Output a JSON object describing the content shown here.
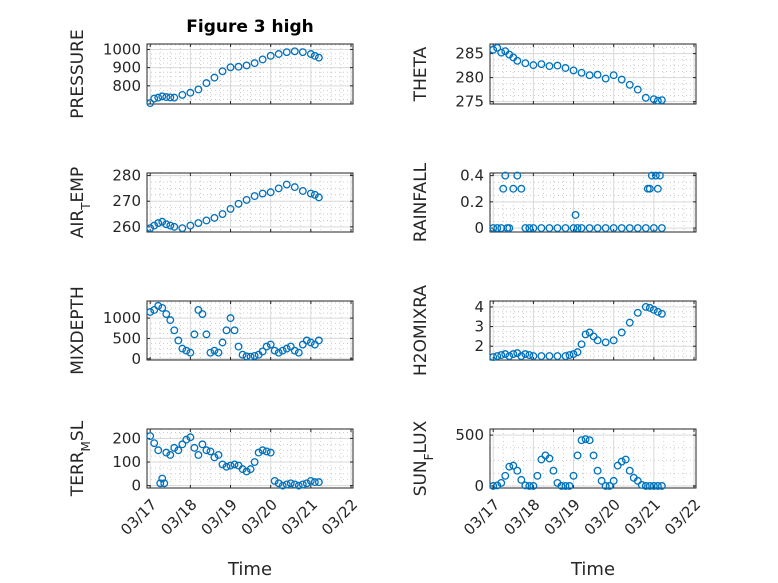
{
  "figure": {
    "title": "Figure 3 high",
    "marker_color": "#0072BD"
  },
  "chart_data": [
    {
      "type": "scatter",
      "id": "pressure",
      "title": "Figure 3 high",
      "xlabel": "",
      "ylabel": "PRESSURE",
      "ylim": [
        700,
        1030
      ],
      "yticks": [
        800,
        900,
        1000
      ],
      "x": [
        0,
        0.1,
        0.2,
        0.3,
        0.4,
        0.5,
        0.6,
        0.8,
        1.0,
        1.2,
        1.4,
        1.6,
        1.8,
        2.0,
        2.2,
        2.4,
        2.6,
        2.8,
        3.0,
        3.2,
        3.4,
        3.6,
        3.8,
        4.0,
        4.1,
        4.2
      ],
      "y": [
        705,
        730,
        735,
        742,
        738,
        736,
        735,
        750,
        762,
        780,
        815,
        845,
        880,
        902,
        905,
        912,
        925,
        945,
        965,
        975,
        985,
        990,
        985,
        975,
        965,
        955
      ]
    },
    {
      "type": "scatter",
      "id": "theta",
      "title": "",
      "xlabel": "",
      "ylabel": "THETA",
      "ylim": [
        274.5,
        287
      ],
      "yticks": [
        275,
        280,
        285
      ],
      "x": [
        0,
        0.1,
        0.2,
        0.3,
        0.4,
        0.5,
        0.6,
        0.8,
        1.0,
        1.2,
        1.4,
        1.6,
        1.8,
        2.0,
        2.2,
        2.4,
        2.6,
        2.8,
        3.0,
        3.2,
        3.4,
        3.6,
        3.8,
        4.0,
        4.1,
        4.2
      ],
      "y": [
        285.8,
        286.2,
        285.2,
        285.5,
        284.8,
        284.2,
        283.5,
        283.0,
        282.6,
        282.8,
        282.4,
        282.5,
        282.0,
        281.5,
        281.0,
        280.5,
        280.6,
        279.8,
        280.5,
        279.6,
        278.5,
        277.5,
        275.8,
        275.5,
        275.2,
        275.3
      ]
    },
    {
      "type": "scatter",
      "id": "air_temp",
      "title": "",
      "xlabel": "",
      "ylabel": "AIR_TEMP",
      "ylim": [
        258,
        281
      ],
      "yticks": [
        260,
        270,
        280
      ],
      "x": [
        0,
        0.1,
        0.2,
        0.3,
        0.4,
        0.5,
        0.6,
        0.8,
        1.0,
        1.2,
        1.4,
        1.6,
        1.8,
        2.0,
        2.2,
        2.4,
        2.6,
        2.8,
        3.0,
        3.2,
        3.4,
        3.6,
        3.8,
        4.0,
        4.1,
        4.2
      ],
      "y": [
        259.5,
        260.5,
        261.5,
        262,
        261,
        260.5,
        260,
        259.5,
        260.5,
        261.5,
        262.5,
        263.5,
        265,
        267,
        269,
        270.5,
        272,
        273,
        273.5,
        275,
        276.5,
        275.5,
        274,
        273,
        272.5,
        271.5
      ]
    },
    {
      "type": "scatter",
      "id": "rainfall",
      "title": "",
      "xlabel": "",
      "ylabel": "RAINFALL",
      "ylim": [
        -0.03,
        0.42
      ],
      "yticks": [
        0,
        0.2,
        0.4
      ],
      "x": [
        0,
        0.1,
        0.2,
        0.25,
        0.3,
        0.35,
        0.4,
        0.5,
        0.6,
        0.7,
        0.8,
        0.9,
        1.0,
        1.2,
        1.4,
        1.6,
        1.8,
        2.0,
        2.05,
        2.1,
        2.2,
        2.4,
        2.6,
        2.8,
        3.0,
        3.2,
        3.4,
        3.6,
        3.8,
        3.85,
        3.9,
        3.95,
        4.0,
        4.05,
        4.1,
        4.15,
        4.2
      ],
      "y": [
        0,
        0,
        0,
        0.3,
        0.4,
        0,
        0,
        0.3,
        0.4,
        0.3,
        0,
        0,
        0,
        0,
        0,
        0,
        0,
        0,
        0.1,
        0,
        0,
        0,
        0,
        0,
        0,
        0,
        0,
        0,
        0,
        0.3,
        0.3,
        0.4,
        0,
        0.4,
        0.3,
        0.4,
        0
      ]
    },
    {
      "type": "scatter",
      "id": "mixdepth",
      "title": "",
      "xlabel": "",
      "ylabel": "MIXDEPTH",
      "ylim": [
        -30,
        1420
      ],
      "yticks": [
        0,
        500,
        1000
      ],
      "x": [
        0,
        0.1,
        0.2,
        0.3,
        0.4,
        0.5,
        0.6,
        0.7,
        0.8,
        0.9,
        1.0,
        1.1,
        1.2,
        1.3,
        1.4,
        1.5,
        1.6,
        1.7,
        1.8,
        1.9,
        2.0,
        2.1,
        2.2,
        2.3,
        2.4,
        2.5,
        2.6,
        2.7,
        2.8,
        2.9,
        3.0,
        3.1,
        3.2,
        3.3,
        3.4,
        3.5,
        3.6,
        3.7,
        3.8,
        3.9,
        4.0,
        4.1,
        4.2
      ],
      "y": [
        1150,
        1200,
        1300,
        1250,
        1100,
        950,
        700,
        450,
        250,
        200,
        150,
        600,
        1200,
        1100,
        600,
        150,
        200,
        150,
        400,
        700,
        1000,
        700,
        300,
        100,
        60,
        50,
        70,
        100,
        180,
        300,
        350,
        200,
        150,
        200,
        250,
        300,
        200,
        150,
        350,
        450,
        400,
        350,
        450
      ]
    },
    {
      "type": "scatter",
      "id": "h2omixra",
      "title": "",
      "xlabel": "",
      "ylabel": "H2OMIXRA",
      "ylim": [
        1.3,
        4.3
      ],
      "yticks": [
        2,
        3,
        4
      ],
      "x": [
        0,
        0.1,
        0.2,
        0.3,
        0.4,
        0.5,
        0.6,
        0.7,
        0.8,
        0.9,
        1.0,
        1.2,
        1.4,
        1.6,
        1.8,
        1.9,
        2.0,
        2.1,
        2.2,
        2.3,
        2.4,
        2.5,
        2.6,
        2.8,
        3.0,
        3.2,
        3.4,
        3.6,
        3.8,
        3.9,
        4.0,
        4.1,
        4.2
      ],
      "y": [
        1.45,
        1.5,
        1.55,
        1.6,
        1.5,
        1.6,
        1.65,
        1.5,
        1.6,
        1.55,
        1.5,
        1.5,
        1.5,
        1.5,
        1.5,
        1.55,
        1.6,
        1.7,
        2.1,
        2.6,
        2.7,
        2.5,
        2.3,
        2.2,
        2.3,
        2.7,
        3.2,
        3.7,
        4.0,
        3.95,
        3.85,
        3.75,
        3.65
      ]
    },
    {
      "type": "scatter",
      "id": "terr_msl",
      "title": "",
      "xlabel": "Time",
      "ylabel": "TERR_MSL",
      "ylim": [
        -10,
        240
      ],
      "yticks": [
        0,
        100,
        200
      ],
      "xticks": [
        "03/17",
        "03/18",
        "03/19",
        "03/20",
        "03/21",
        "03/22"
      ],
      "x": [
        0,
        0.1,
        0.2,
        0.25,
        0.3,
        0.35,
        0.4,
        0.5,
        0.6,
        0.7,
        0.8,
        0.9,
        1.0,
        1.1,
        1.2,
        1.3,
        1.4,
        1.5,
        1.6,
        1.7,
        1.8,
        1.9,
        2.0,
        2.1,
        2.2,
        2.3,
        2.4,
        2.5,
        2.6,
        2.7,
        2.8,
        2.9,
        3.0,
        3.1,
        3.2,
        3.3,
        3.4,
        3.5,
        3.6,
        3.7,
        3.8,
        3.9,
        4.0,
        4.1,
        4.2
      ],
      "y": [
        210,
        180,
        150,
        10,
        30,
        10,
        140,
        130,
        160,
        150,
        175,
        195,
        205,
        160,
        130,
        175,
        150,
        145,
        120,
        130,
        90,
        80,
        85,
        90,
        85,
        70,
        60,
        70,
        100,
        140,
        150,
        145,
        140,
        20,
        10,
        0,
        5,
        10,
        5,
        0,
        5,
        10,
        20,
        15,
        15
      ]
    },
    {
      "type": "scatter",
      "id": "sun_flux",
      "title": "",
      "xlabel": "Time",
      "ylabel": "SUN_FLUX",
      "ylim": [
        -20,
        560
      ],
      "yticks": [
        0,
        500
      ],
      "xticks": [
        "03/17",
        "03/18",
        "03/19",
        "03/20",
        "03/21",
        "03/22"
      ],
      "x": [
        0,
        0.1,
        0.2,
        0.3,
        0.4,
        0.5,
        0.6,
        0.7,
        0.8,
        0.9,
        1.0,
        1.1,
        1.2,
        1.3,
        1.4,
        1.5,
        1.6,
        1.7,
        1.8,
        1.9,
        2.0,
        2.1,
        2.2,
        2.3,
        2.4,
        2.5,
        2.6,
        2.7,
        2.8,
        2.9,
        3.0,
        3.1,
        3.2,
        3.3,
        3.4,
        3.5,
        3.6,
        3.7,
        3.8,
        3.9,
        4.0,
        4.1,
        4.2
      ],
      "y": [
        0,
        5,
        30,
        100,
        190,
        200,
        150,
        60,
        5,
        0,
        0,
        100,
        260,
        300,
        270,
        150,
        30,
        0,
        0,
        0,
        100,
        300,
        450,
        460,
        450,
        300,
        150,
        50,
        0,
        0,
        50,
        200,
        240,
        260,
        150,
        80,
        50,
        10,
        0,
        0,
        0,
        0,
        0
      ]
    }
  ]
}
